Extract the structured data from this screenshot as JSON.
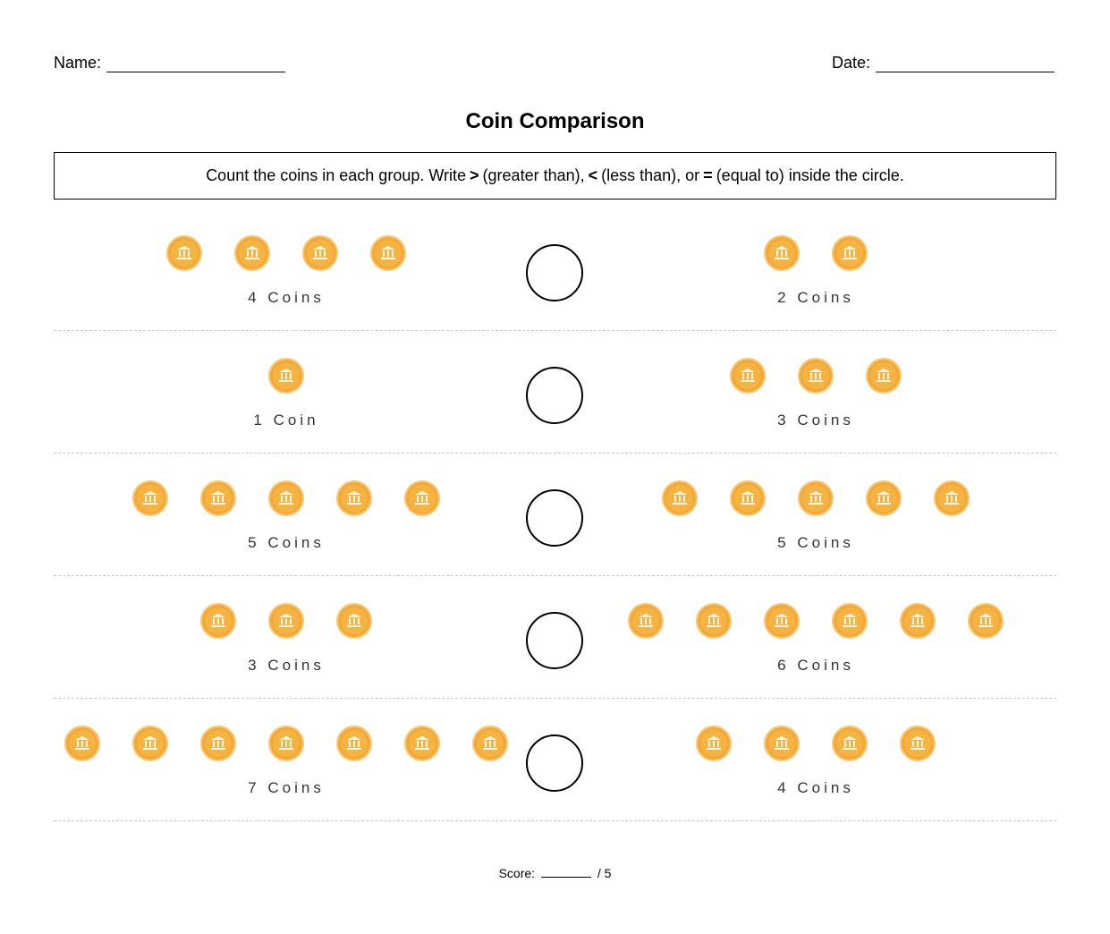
{
  "header": {
    "name_label": "Name:",
    "date_label": "Date:"
  },
  "title": "Coin Comparison",
  "instructions": {
    "prefix": "Count the coins in each group. Write",
    "gt_symbol": ">",
    "gt_text": "(greater than),",
    "lt_symbol": "<",
    "lt_text": "(less than), or",
    "eq_symbol": "=",
    "eq_text": "(equal to) inside the circle."
  },
  "problems": [
    {
      "left_count": 4,
      "left_label": "4 Coins",
      "right_count": 2,
      "right_label": "2 Coins"
    },
    {
      "left_count": 1,
      "left_label": "1 Coin",
      "right_count": 3,
      "right_label": "3 Coins"
    },
    {
      "left_count": 5,
      "left_label": "5 Coins",
      "right_count": 5,
      "right_label": "5 Coins"
    },
    {
      "left_count": 3,
      "left_label": "3 Coins",
      "right_count": 6,
      "right_label": "6 Coins"
    },
    {
      "left_count": 7,
      "left_label": "7 Coins",
      "right_count": 4,
      "right_label": "4 Coins"
    }
  ],
  "score": {
    "label": "Score:",
    "total": "/ 5"
  },
  "coin_icon": "bank-building-icon",
  "colors": {
    "coin_fill": "#f5b342",
    "coin_rim": "#f7c871"
  }
}
